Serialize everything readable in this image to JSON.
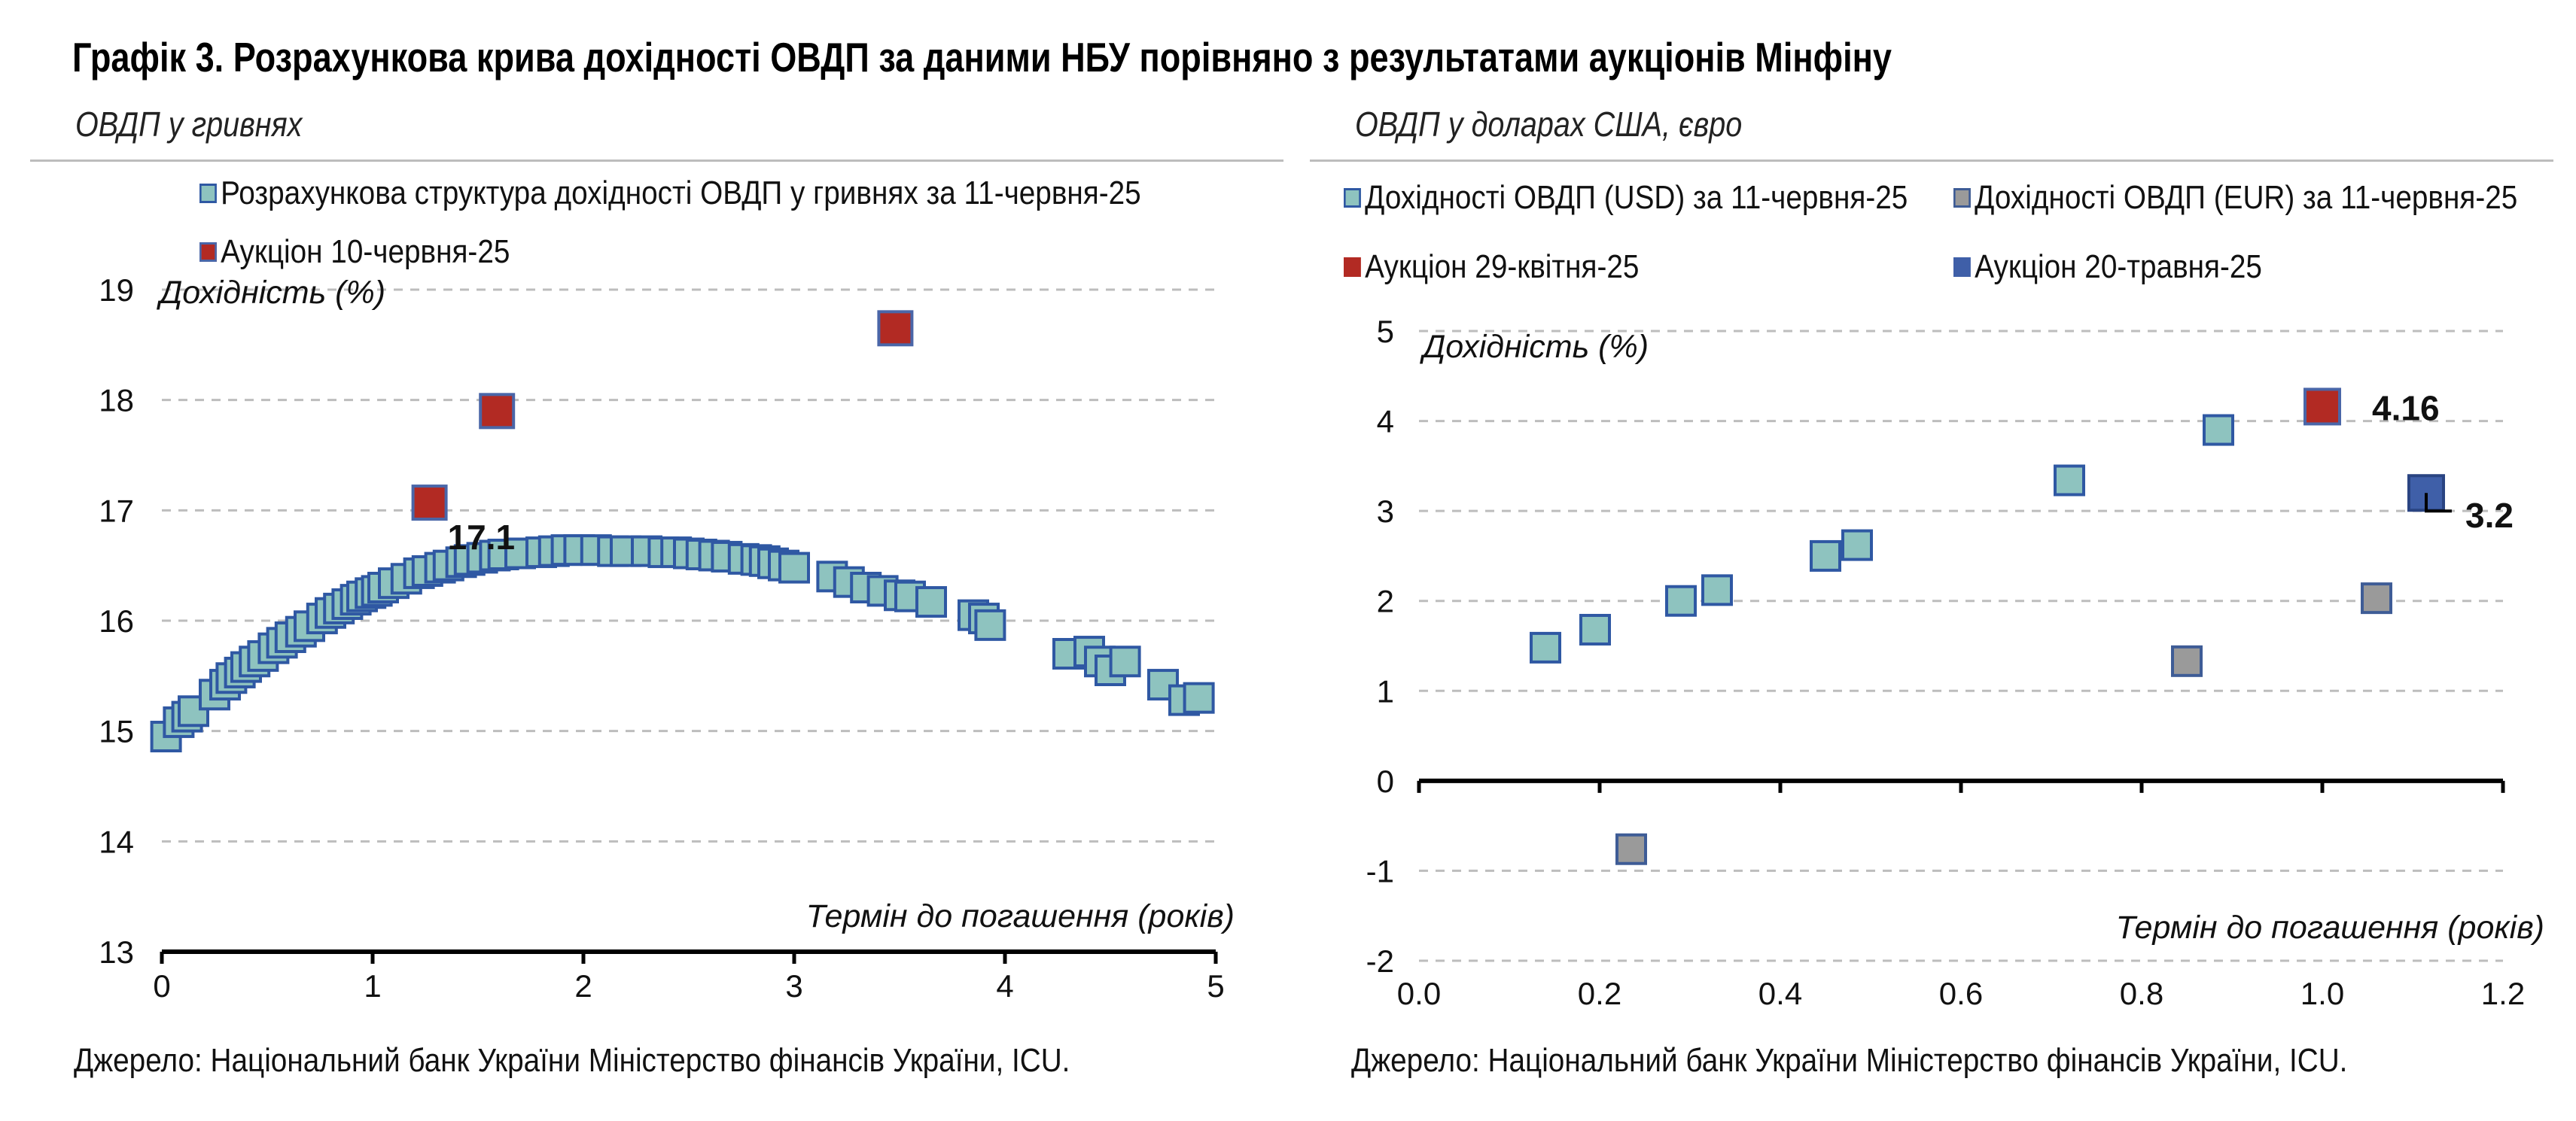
{
  "title": "Графік 3. Розрахункова крива дохідності ОВДП за даними НБУ порівняно з результатами аукціонів Мінфіну",
  "colors": {
    "teal": "#8EC3BF",
    "tealEdge": "#2F58A3",
    "red": "#B22A23",
    "redEdge": "#4A66A8",
    "grey": "#9A9A9A",
    "greyEdge": "#3E5C96",
    "blue": "#3F5FA8",
    "blueEdge": "#2A4482",
    "grid": "#bdbdbd"
  },
  "left": {
    "subtitle": "ОВДП у гривнях",
    "source": "Джерело: Національний банк України Міністерство фінансів України, ICU.",
    "chart_data": {
      "type": "scatter",
      "ylabel": "Дохідність (%)",
      "xlabel": "Термін до погашення (років)",
      "xlim": [
        0,
        5
      ],
      "ylim": [
        13,
        19
      ],
      "xticks": [
        0,
        1,
        2,
        3,
        4,
        5
      ],
      "yticks": [
        13,
        14,
        15,
        16,
        17,
        18,
        19
      ],
      "grid": true,
      "legend_position": "top",
      "series": [
        {
          "name": "Розрахункова структура дохідності ОВДП у гривнях за 11-червня-25",
          "color": "teal",
          "points": [
            [
              0.02,
              14.95
            ],
            [
              0.08,
              15.08
            ],
            [
              0.12,
              15.13
            ],
            [
              0.15,
              15.18
            ],
            [
              0.25,
              15.33
            ],
            [
              0.3,
              15.42
            ],
            [
              0.33,
              15.48
            ],
            [
              0.37,
              15.53
            ],
            [
              0.4,
              15.58
            ],
            [
              0.44,
              15.63
            ],
            [
              0.48,
              15.68
            ],
            [
              0.53,
              15.75
            ],
            [
              0.57,
              15.8
            ],
            [
              0.61,
              15.85
            ],
            [
              0.66,
              15.9
            ],
            [
              0.7,
              15.95
            ],
            [
              0.76,
              16.02
            ],
            [
              0.8,
              16.07
            ],
            [
              0.84,
              16.11
            ],
            [
              0.88,
              16.15
            ],
            [
              0.92,
              16.19
            ],
            [
              0.95,
              16.22
            ],
            [
              0.99,
              16.25
            ],
            [
              1.02,
              16.27
            ],
            [
              1.05,
              16.3
            ],
            [
              1.1,
              16.34
            ],
            [
              1.16,
              16.38
            ],
            [
              1.22,
              16.43
            ],
            [
              1.26,
              16.45
            ],
            [
              1.32,
              16.48
            ],
            [
              1.36,
              16.5
            ],
            [
              1.42,
              16.53
            ],
            [
              1.46,
              16.55
            ],
            [
              1.52,
              16.57
            ],
            [
              1.58,
              16.59
            ],
            [
              1.62,
              16.6
            ],
            [
              1.7,
              16.61
            ],
            [
              1.8,
              16.62
            ],
            [
              1.86,
              16.63
            ],
            [
              1.92,
              16.64
            ],
            [
              1.98,
              16.64
            ],
            [
              2.06,
              16.64
            ],
            [
              2.14,
              16.63
            ],
            [
              2.2,
              16.63
            ],
            [
              2.3,
              16.63
            ],
            [
              2.38,
              16.62
            ],
            [
              2.44,
              16.62
            ],
            [
              2.5,
              16.61
            ],
            [
              2.56,
              16.6
            ],
            [
              2.62,
              16.59
            ],
            [
              2.68,
              16.58
            ],
            [
              2.76,
              16.56
            ],
            [
              2.82,
              16.55
            ],
            [
              2.86,
              16.54
            ],
            [
              2.9,
              16.52
            ],
            [
              2.95,
              16.5
            ],
            [
              3.0,
              16.48
            ],
            [
              3.18,
              16.4
            ],
            [
              3.26,
              16.35
            ],
            [
              3.34,
              16.3
            ],
            [
              3.42,
              16.27
            ],
            [
              3.5,
              16.23
            ],
            [
              3.55,
              16.22
            ],
            [
              3.65,
              16.17
            ],
            [
              3.85,
              16.05
            ],
            [
              3.9,
              16.02
            ],
            [
              3.93,
              15.96
            ],
            [
              4.3,
              15.7
            ],
            [
              4.4,
              15.72
            ],
            [
              4.45,
              15.63
            ],
            [
              4.5,
              15.55
            ],
            [
              4.57,
              15.63
            ],
            [
              4.75,
              15.42
            ],
            [
              4.85,
              15.28
            ],
            [
              4.92,
              15.3
            ]
          ]
        },
        {
          "name": "Аукціон 10-червня-25",
          "color": "red",
          "points": [
            [
              1.27,
              17.07
            ],
            [
              1.59,
              17.9
            ],
            [
              3.48,
              18.65
            ]
          ]
        }
      ],
      "annotations": [
        {
          "text": "17.1",
          "x": 1.27,
          "y": 17.07
        }
      ]
    }
  },
  "right": {
    "subtitle": "ОВДП у доларах США, євро",
    "source": "Джерело: Національний банк України Міністерство фінансів України, ICU.",
    "chart_data": {
      "type": "scatter",
      "ylabel": "Дохідність (%)",
      "xlabel": "Термін до погашення (років)",
      "xlim": [
        0,
        1.2
      ],
      "ylim": [
        -2,
        5
      ],
      "xticks": [
        "0.0",
        "0.2",
        "0.4",
        "0.6",
        "0.8",
        "1.0",
        "1.2"
      ],
      "yticks": [
        -2,
        -1,
        0,
        1,
        2,
        3,
        4,
        5
      ],
      "grid": true,
      "legend_position": "top",
      "series": [
        {
          "name": "Дохідності ОВДП (USD) за 11-червня-25",
          "color": "teal",
          "points": [
            [
              0.14,
              1.48
            ],
            [
              0.195,
              1.68
            ],
            [
              0.29,
              2.0
            ],
            [
              0.33,
              2.12
            ],
            [
              0.45,
              2.5
            ],
            [
              0.485,
              2.62
            ],
            [
              0.72,
              3.34
            ],
            [
              0.885,
              3.9
            ]
          ]
        },
        {
          "name": "Дохідності ОВДП (EUR) за 11-червня-25",
          "color": "grey",
          "points": [
            [
              0.235,
              -0.76
            ],
            [
              0.85,
              1.33
            ],
            [
              1.06,
              2.03
            ]
          ]
        },
        {
          "name": "Аукціон 29-квітня-25",
          "color": "red",
          "points": [
            [
              1.0,
              4.16
            ]
          ]
        },
        {
          "name": "Аукціон 20-травня-25",
          "color": "blue",
          "points": [
            [
              1.115,
              3.2
            ]
          ]
        }
      ],
      "annotations": [
        {
          "text": "4.16",
          "x": 1.0,
          "y": 4.16
        },
        {
          "text": "3.2",
          "x": 1.115,
          "y": 3.2
        }
      ]
    }
  }
}
